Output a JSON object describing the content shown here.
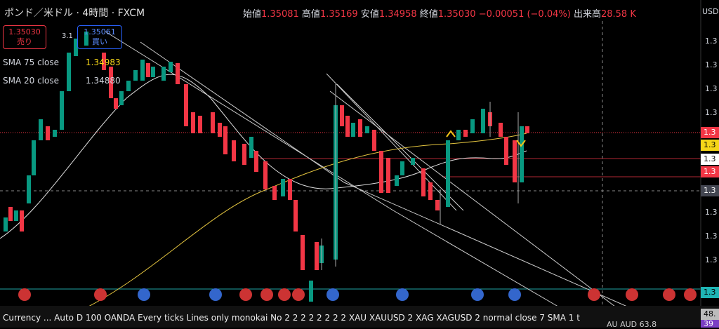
{
  "header": {
    "symbol": "ポンド／米ドル · 4時間 · FXCM",
    "open_label": "始値",
    "open": "1.35081",
    "high_label": "高値",
    "high": "1.35169",
    "low_label": "安値",
    "low": "1.34958",
    "close_label": "終値",
    "close": "1.35030",
    "change": "−0.00051 (−0.04%)",
    "volume_label": "出来高",
    "volume": "28.58 K",
    "currency": "USD"
  },
  "order": {
    "sell_price": "1.35030",
    "sell_label": "売り",
    "spread": "3.1",
    "buy_price": "1.35061",
    "buy_label": "買い"
  },
  "indicators": [
    {
      "name": "SMA 75 close",
      "value": "1.34983"
    },
    {
      "name": "SMA 20 close",
      "value": "1.34880"
    }
  ],
  "price_axis": {
    "labels": [
      "1.3",
      "1.3",
      "1.3",
      "1.3",
      "1.3",
      "1.3",
      "1.3"
    ],
    "tags": [
      "1.3",
      "1.3",
      "1.3",
      "1.3",
      "1.3",
      "1.3"
    ],
    "extra": [
      "48.",
      "39"
    ]
  },
  "status_bar": {
    "text": "Currency ...   Auto D 100 OANDA Every ticks Lines only monokai No 2 2 2 2 2 2 2 2 XAU XAUUSD 2 XAG XAGUSD 2 normal close 7 SMA 1 t",
    "right": "AU   AUD   63.8"
  }
}
